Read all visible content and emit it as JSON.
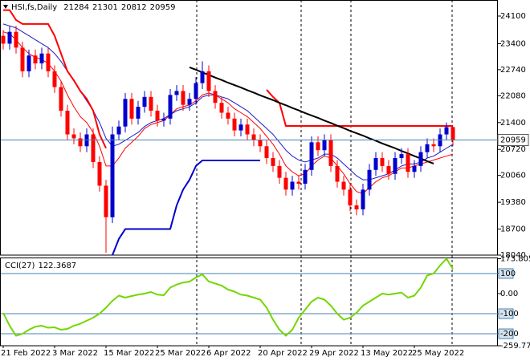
{
  "chart_data": [
    {
      "type": "candlestick",
      "title": "HSI,fs,Daily",
      "categories": [
        "21 Feb 2022",
        null,
        null,
        null,
        null,
        null,
        null,
        null,
        "3 Mar 2022",
        null,
        null,
        null,
        null,
        null,
        null,
        null,
        "15 Mar 2022",
        null,
        null,
        null,
        null,
        null,
        null,
        null,
        "25 Mar 2022",
        null,
        null,
        null,
        null,
        null,
        null,
        null,
        "6 Apr 2022",
        null,
        null,
        null,
        null,
        null,
        null,
        null,
        "20 Apr 2022",
        null,
        null,
        null,
        null,
        null,
        null,
        null,
        "29 Apr 2022",
        null,
        null,
        null,
        null,
        null,
        null,
        null,
        "13 May 2022",
        null,
        null,
        null,
        null,
        null,
        null,
        null,
        "25 May 2022",
        null,
        null,
        null,
        null,
        null,
        null
      ],
      "open": [
        23600,
        23400,
        23700,
        23300,
        22700,
        23100,
        22900,
        23150,
        22700,
        22300,
        21700,
        21100,
        21000,
        20800,
        21100,
        20400,
        19800,
        19000,
        21100,
        21300,
        22000,
        21500,
        21800,
        22050,
        21700,
        21450,
        21500,
        22100,
        22200,
        21850,
        22000,
        22400,
        22700,
        22200,
        21900,
        21650,
        21500,
        21200,
        21350,
        21100,
        20950,
        20800,
        20500,
        20300,
        20000,
        19700,
        19900,
        19850,
        20200,
        20900,
        20700,
        20950,
        20300,
        19900,
        19700,
        19300,
        19200,
        19700,
        20200,
        20500,
        20300,
        20100,
        20500,
        20600,
        20150,
        20300,
        20650,
        20850,
        20800,
        21100,
        21284
      ],
      "high": [
        23750,
        23850,
        23850,
        23450,
        23250,
        23250,
        23300,
        23300,
        22850,
        22450,
        21850,
        21250,
        21150,
        21250,
        21250,
        20550,
        19950,
        21300,
        21450,
        22150,
        22150,
        21950,
        22200,
        22200,
        21850,
        21650,
        22250,
        22350,
        22350,
        22150,
        22550,
        22950,
        22850,
        22350,
        22050,
        21800,
        21650,
        21500,
        21500,
        21250,
        21100,
        20950,
        20650,
        20450,
        20150,
        20050,
        20050,
        20350,
        21050,
        21050,
        21100,
        21100,
        20450,
        20050,
        19850,
        19450,
        19850,
        20350,
        20650,
        20650,
        20450,
        20650,
        20750,
        20750,
        20450,
        20800,
        21000,
        21000,
        21250,
        21400,
        21301
      ],
      "low": [
        23250,
        23250,
        23150,
        22550,
        22550,
        22750,
        22750,
        22550,
        22150,
        21550,
        20950,
        20850,
        20650,
        20650,
        20250,
        19650,
        18100,
        18850,
        20950,
        21150,
        21350,
        21350,
        21650,
        21550,
        21300,
        21300,
        21350,
        21950,
        21700,
        21700,
        21850,
        22250,
        22050,
        21750,
        21500,
        21350,
        21050,
        21050,
        20950,
        20800,
        20650,
        20350,
        20150,
        19850,
        19550,
        19550,
        19700,
        19700,
        20050,
        20550,
        20550,
        20150,
        19750,
        19550,
        19150,
        19050,
        19050,
        19550,
        20050,
        20150,
        19950,
        19950,
        20350,
        20000,
        20000,
        20150,
        20500,
        20650,
        20650,
        20950,
        20812
      ],
      "close": [
        23400,
        23700,
        23300,
        22700,
        23100,
        22900,
        23150,
        22700,
        22300,
        21700,
        21100,
        21000,
        20800,
        21100,
        20400,
        19800,
        19000,
        21100,
        21300,
        22000,
        21500,
        21800,
        22050,
        21700,
        21450,
        21500,
        22100,
        22200,
        21850,
        22000,
        22400,
        22700,
        22200,
        21900,
        21650,
        21500,
        21200,
        21350,
        21100,
        20950,
        20800,
        20500,
        20300,
        20000,
        19700,
        19900,
        19850,
        20200,
        20900,
        20700,
        20950,
        20300,
        19900,
        19700,
        19300,
        19200,
        19700,
        20200,
        20500,
        20300,
        20100,
        20500,
        20600,
        20150,
        20300,
        20650,
        20850,
        20800,
        21100,
        21284,
        20959
      ],
      "up_color": "#0000cd",
      "down_color": "#ff0000",
      "price_line_color": "#4682b4",
      "lines": [
        {
          "color": "#ff0000",
          "width": 1,
          "values": [
            23700,
            23650,
            23500,
            23300,
            23150,
            23050,
            23000,
            22900,
            22700,
            22450,
            22100,
            21800,
            21550,
            21400,
            21150,
            20800,
            20300,
            20300,
            20500,
            20750,
            20900,
            21050,
            21250,
            21350,
            21400,
            21450,
            21600,
            21750,
            21800,
            21850,
            21950,
            22100,
            22150,
            22100,
            22000,
            21900,
            21750,
            21650,
            21550,
            21400,
            21250,
            21050,
            20850,
            20600,
            20300,
            20150,
            20050,
            20100,
            20300,
            20450,
            20550,
            20500,
            20300,
            20100,
            19850,
            19650,
            19600,
            19750,
            19900,
            20000,
            20050,
            20150,
            20250,
            20250,
            20300,
            20350,
            20400,
            20450,
            20500,
            20550,
            20600
          ]
        },
        {
          "color": "#1c1cc8",
          "width": 1,
          "values": [
            23900,
            23850,
            23800,
            23700,
            23600,
            23500,
            23400,
            23300,
            23150,
            22950,
            22700,
            22450,
            22200,
            21950,
            21700,
            21400,
            21000,
            20800,
            20850,
            20950,
            21050,
            21150,
            21300,
            21400,
            21450,
            21500,
            21600,
            21700,
            21750,
            21800,
            21900,
            22050,
            22100,
            22100,
            22050,
            22000,
            21900,
            21800,
            21700,
            21550,
            21400,
            21250,
            21100,
            20900,
            20700,
            20550,
            20450,
            20400,
            20450,
            20500,
            20600,
            20600,
            20500,
            20350,
            20200,
            20050,
            19950,
            19950,
            20000,
            20050,
            20100,
            20200,
            20300,
            20350,
            20350,
            20400,
            20500,
            20550,
            20650,
            20750,
            20850
          ]
        },
        {
          "color": "#ff0000",
          "width": 2,
          "values": [
            24250,
            24250,
            24000,
            23900,
            23900,
            23900,
            23900,
            23900,
            23600,
            23150,
            22700,
            22470,
            22200,
            22000,
            21700,
            21100,
            20750,
            null,
            null,
            null,
            null,
            null,
            null,
            null,
            null,
            null,
            null,
            null,
            null,
            null,
            null,
            null,
            null,
            null,
            null,
            null,
            null,
            null,
            null,
            null,
            null,
            22230,
            22050,
            21900,
            21313,
            21313,
            21313,
            21313,
            21313,
            21313,
            21313,
            21313,
            21313,
            21313,
            21313,
            21313,
            21313,
            21313,
            21313,
            21313,
            21313,
            21313,
            21313,
            21313,
            21313,
            21313,
            21313,
            21313,
            21313,
            21313,
            21313
          ]
        },
        {
          "color": "#0000cd",
          "width": 2,
          "values": [
            null,
            null,
            null,
            null,
            null,
            null,
            null,
            null,
            null,
            null,
            null,
            null,
            null,
            null,
            null,
            null,
            null,
            18040,
            18450,
            18700,
            18700,
            18700,
            18700,
            18700,
            18700,
            18700,
            18700,
            19300,
            19700,
            19950,
            20300,
            20440,
            20440,
            20440,
            20440,
            20440,
            20440,
            20440,
            20440,
            20440,
            20440,
            null,
            null,
            null,
            null,
            null,
            null,
            null,
            null,
            null,
            null,
            null,
            null,
            null,
            null,
            null,
            null,
            null,
            null,
            null,
            null,
            null,
            null,
            null,
            null,
            null,
            null,
            null,
            null,
            null,
            null
          ]
        },
        {
          "color": "#000000",
          "width": 2,
          "values": [
            null,
            null,
            null,
            null,
            null,
            null,
            null,
            null,
            null,
            null,
            null,
            null,
            null,
            null,
            null,
            null,
            null,
            null,
            null,
            null,
            null,
            null,
            null,
            null,
            null,
            null,
            null,
            null,
            null,
            22800,
            22740,
            22670,
            22610,
            22540,
            22480,
            22410,
            22350,
            22290,
            22220,
            22160,
            22090,
            22030,
            21970,
            21900,
            21840,
            21770,
            21710,
            21640,
            21580,
            21520,
            21450,
            21390,
            21320,
            21260,
            21190,
            21130,
            21070,
            21000,
            20940,
            20870,
            20810,
            20750,
            20680,
            20620,
            20550,
            20490,
            20420,
            20360,
            null,
            null,
            null
          ]
        }
      ],
      "ylim": [
        18040,
        24446
      ],
      "yticks": [
        24100,
        23400,
        22740,
        22080,
        21400,
        20720,
        20060,
        19380,
        18700,
        18040
      ]
    },
    {
      "type": "line",
      "title": "CCI(27)",
      "series": [
        {
          "color": "#74d600",
          "values": [
            -96,
            -160,
            -210,
            -200,
            -180,
            -165,
            -160,
            -170,
            -168,
            -180,
            -176,
            -160,
            -150,
            -135,
            -120,
            -100,
            -70,
            -36,
            -10,
            -20,
            -12,
            -5,
            0,
            8,
            -5,
            -8,
            30,
            45,
            55,
            60,
            80,
            96,
            60,
            50,
            40,
            20,
            10,
            -5,
            -10,
            -20,
            -30,
            -70,
            -130,
            -180,
            -210,
            -180,
            -120,
            -80,
            -40,
            -20,
            -30,
            -60,
            -100,
            -130,
            -120,
            -95,
            -60,
            -40,
            -20,
            0,
            -5,
            0,
            5,
            -20,
            -10,
            30,
            90,
            100,
            140,
            173.8057,
            122.3687
          ]
        }
      ],
      "ylim": [
        -259.778,
        173.8057
      ],
      "yticks": [
        173.8057,
        100,
        {
          "value": 0,
          "label": "0.00"
        },
        -100,
        -200,
        -259.778
      ],
      "levels": [
        100,
        -100,
        -200
      ],
      "level_color": "#4682b4"
    }
  ]
}
